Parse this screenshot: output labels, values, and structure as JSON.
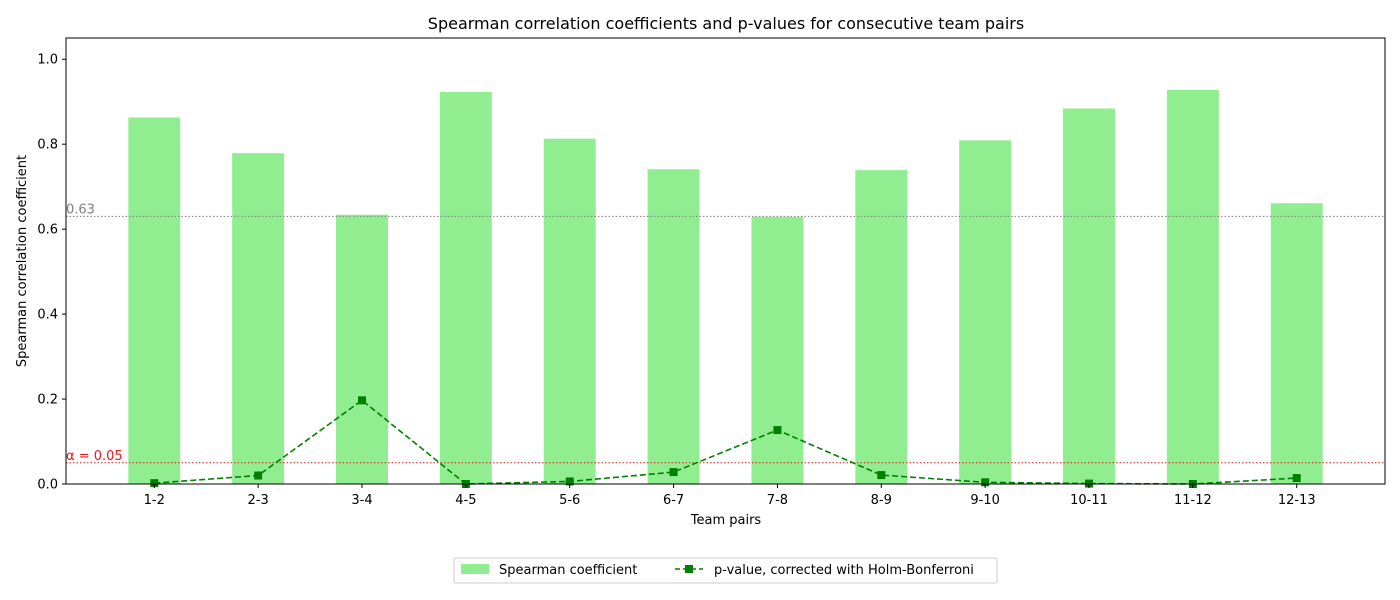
{
  "chart_data": {
    "type": "bar",
    "title": "Spearman correlation coefficients and p-values for consecutive team pairs",
    "xlabel": "Team pairs",
    "ylabel": "Spearman correlation coefficient",
    "ylim": [
      0,
      1.05
    ],
    "yticks": [
      "0.0",
      "0.2",
      "0.4",
      "0.6",
      "0.8",
      "1.0"
    ],
    "categories": [
      "1-2",
      "2-3",
      "3-4",
      "4-5",
      "5-6",
      "6-7",
      "7-8",
      "8-9",
      "9-10",
      "10-11",
      "11-12",
      "12-13"
    ],
    "grid": false,
    "legend_position": "bottom-center",
    "series": [
      {
        "name": "Spearman coefficient",
        "type": "bar",
        "color": "#90ee90",
        "values": [
          0.863,
          0.779,
          0.634,
          0.923,
          0.813,
          0.741,
          0.629,
          0.739,
          0.809,
          0.884,
          0.928,
          0.661
        ]
      },
      {
        "name": "p-value, corrected with Holm-Bonferroni",
        "type": "line",
        "color": "#008000",
        "line_style": "dashed",
        "marker": "square",
        "values": [
          0.002,
          0.02,
          0.197,
          0.0,
          0.006,
          0.028,
          0.127,
          0.021,
          0.004,
          0.001,
          0.0,
          0.014
        ]
      }
    ],
    "reference_lines": [
      {
        "value": 0.63,
        "label": "0.63",
        "color": "#808080"
      },
      {
        "value": 0.05,
        "label": "α = 0.05",
        "color": "#e41a1c"
      }
    ]
  }
}
